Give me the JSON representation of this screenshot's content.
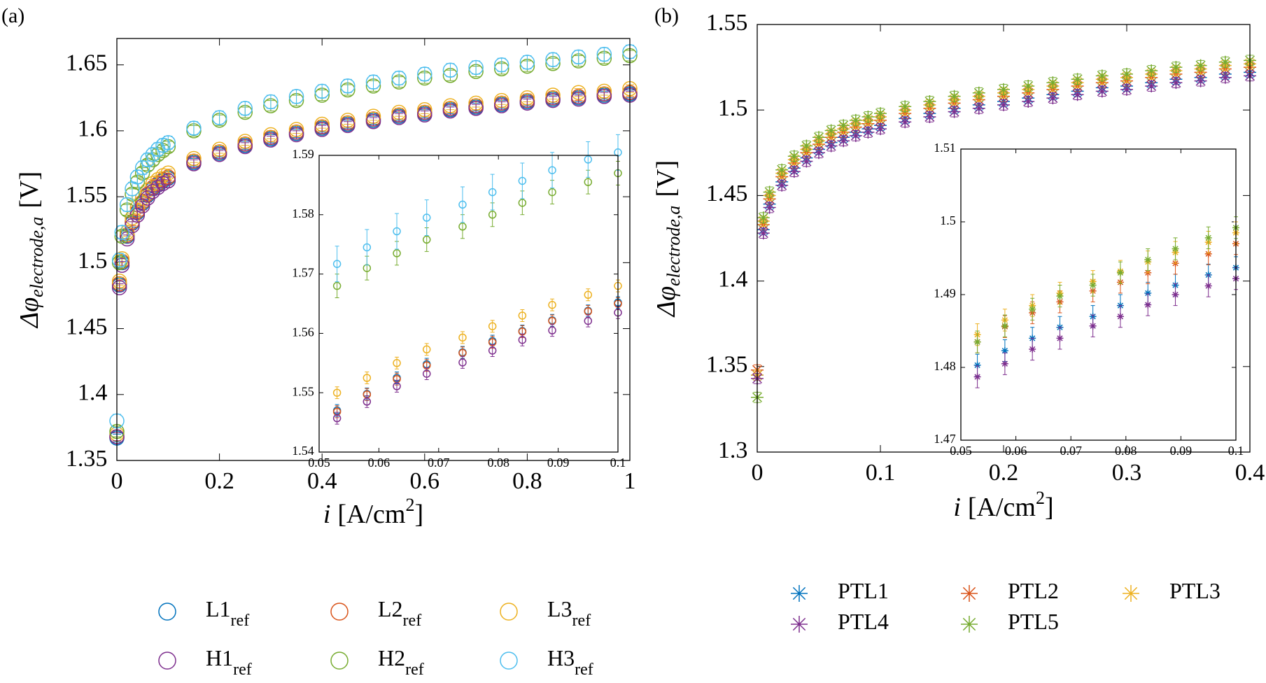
{
  "chart_data": [
    {
      "type": "scatter",
      "panel_label": "(a)",
      "marker": "circle",
      "xlabel": {
        "symbol": "i",
        "unit": "[A/cm",
        "superscript": "2",
        "suffix": "]"
      },
      "ylabel": {
        "symbol": "Δφ",
        "subscript": "electrode,a",
        "unit": "[V]"
      },
      "xlim": [
        0,
        1
      ],
      "ylim": [
        1.35,
        1.67
      ],
      "xticks": [
        0,
        0.2,
        0.4,
        0.6,
        0.8,
        1
      ],
      "yticks": [
        1.35,
        1.4,
        1.45,
        1.5,
        1.55,
        1.6,
        1.65
      ],
      "legend": "bottom",
      "x": [
        0,
        0.005,
        0.01,
        0.02,
        0.03,
        0.04,
        0.05,
        0.06,
        0.07,
        0.08,
        0.09,
        0.1,
        0.15,
        0.2,
        0.25,
        0.3,
        0.35,
        0.4,
        0.45,
        0.5,
        0.55,
        0.6,
        0.65,
        0.7,
        0.75,
        0.8,
        0.85,
        0.9,
        0.95,
        1
      ],
      "series": [
        {
          "name": "L1",
          "subscript": "ref",
          "color": "#0072bd",
          "error": 0.003,
          "values": [
            1.367,
            1.483,
            1.5,
            1.52,
            1.53,
            1.538,
            1.545,
            1.551,
            1.556,
            1.559,
            1.562,
            1.564,
            1.576,
            1.583,
            1.589,
            1.594,
            1.598,
            1.602,
            1.605,
            1.608,
            1.611,
            1.613,
            1.616,
            1.618,
            1.62,
            1.622,
            1.624,
            1.625,
            1.627,
            1.628
          ]
        },
        {
          "name": "L2",
          "subscript": "ref",
          "color": "#d95319",
          "error": 0.003,
          "values": [
            1.368,
            1.484,
            1.501,
            1.521,
            1.531,
            1.539,
            1.546,
            1.552,
            1.557,
            1.56,
            1.563,
            1.565,
            1.577,
            1.584,
            1.59,
            1.595,
            1.599,
            1.603,
            1.606,
            1.609,
            1.612,
            1.614,
            1.617,
            1.619,
            1.621,
            1.623,
            1.625,
            1.626,
            1.628,
            1.629
          ]
        },
        {
          "name": "L3",
          "subscript": "ref",
          "color": "#edb120",
          "error": 0.003,
          "values": [
            1.37,
            1.486,
            1.503,
            1.523,
            1.534,
            1.542,
            1.549,
            1.555,
            1.56,
            1.563,
            1.566,
            1.568,
            1.579,
            1.586,
            1.592,
            1.597,
            1.601,
            1.605,
            1.608,
            1.611,
            1.614,
            1.616,
            1.619,
            1.621,
            1.623,
            1.625,
            1.627,
            1.629,
            1.63,
            1.632
          ]
        },
        {
          "name": "H1",
          "subscript": "ref",
          "color": "#7e2f8e",
          "error": 0.003,
          "values": [
            1.368,
            1.481,
            1.498,
            1.518,
            1.528,
            1.536,
            1.543,
            1.549,
            1.554,
            1.557,
            1.56,
            1.562,
            1.575,
            1.582,
            1.588,
            1.593,
            1.597,
            1.601,
            1.604,
            1.607,
            1.61,
            1.612,
            1.615,
            1.617,
            1.619,
            1.621,
            1.623,
            1.624,
            1.626,
            1.627
          ]
        },
        {
          "name": "H2",
          "subscript": "ref",
          "color": "#77ac30",
          "error": 0.004,
          "values": [
            1.372,
            1.5,
            1.52,
            1.54,
            1.552,
            1.561,
            1.568,
            1.574,
            1.578,
            1.582,
            1.585,
            1.588,
            1.6,
            1.608,
            1.614,
            1.619,
            1.623,
            1.627,
            1.631,
            1.634,
            1.637,
            1.64,
            1.642,
            1.645,
            1.647,
            1.649,
            1.651,
            1.653,
            1.655,
            1.657
          ]
        },
        {
          "name": "H3",
          "subscript": "ref",
          "color": "#4dbeee",
          "error": 0.005,
          "values": [
            1.38,
            1.502,
            1.523,
            1.544,
            1.556,
            1.565,
            1.572,
            1.578,
            1.582,
            1.586,
            1.589,
            1.591,
            1.602,
            1.61,
            1.617,
            1.622,
            1.626,
            1.63,
            1.634,
            1.637,
            1.64,
            1.643,
            1.646,
            1.648,
            1.65,
            1.652,
            1.654,
            1.656,
            1.658,
            1.66
          ]
        }
      ]
    },
    {
      "type": "scatter",
      "marker": "circle",
      "xlim": [
        0.05,
        0.1
      ],
      "ylim": [
        1.54,
        1.59
      ],
      "xticks": [
        0.05,
        0.06,
        0.07,
        0.08,
        0.09,
        0.1
      ],
      "yticks": [
        1.54,
        1.55,
        1.56,
        1.57,
        1.58,
        1.59
      ],
      "x": [
        0.053,
        0.058,
        0.063,
        0.068,
        0.074,
        0.079,
        0.084,
        0.089,
        0.095,
        0.1
      ],
      "series": [
        {
          "color": "#0072bd",
          "error": 0.001,
          "values": [
            1.547,
            1.5498,
            1.5525,
            1.5548,
            1.5568,
            1.5587,
            1.5604,
            1.5622,
            1.5638,
            1.5652
          ]
        },
        {
          "color": "#d95319",
          "error": 0.001,
          "values": [
            1.5468,
            1.5497,
            1.5523,
            1.5546,
            1.5567,
            1.5585,
            1.5603,
            1.5621,
            1.5637,
            1.565
          ]
        },
        {
          "color": "#edb120",
          "error": 0.001,
          "values": [
            1.55,
            1.5525,
            1.555,
            1.5573,
            1.5593,
            1.5612,
            1.563,
            1.5648,
            1.5665,
            1.568
          ]
        },
        {
          "color": "#7e2f8e",
          "error": 0.001,
          "values": [
            1.5457,
            1.5485,
            1.5511,
            1.5532,
            1.5551,
            1.5571,
            1.5589,
            1.5605,
            1.5621,
            1.5635
          ]
        },
        {
          "color": "#77ac30",
          "error": 0.002,
          "values": [
            1.568,
            1.571,
            1.5735,
            1.5758,
            1.578,
            1.58,
            1.582,
            1.5838,
            1.5855,
            1.587
          ]
        },
        {
          "color": "#4dbeee",
          "error": 0.003,
          "values": [
            1.5717,
            1.5745,
            1.5772,
            1.5795,
            1.5817,
            1.5838,
            1.5857,
            1.5875,
            1.5893,
            1.5905
          ]
        }
      ]
    },
    {
      "type": "scatter",
      "panel_label": "(b)",
      "marker": "asterisk",
      "xlabel": {
        "symbol": "i",
        "unit": "[A/cm",
        "superscript": "2",
        "suffix": "]"
      },
      "ylabel": {
        "symbol": "Δφ",
        "subscript": "electrode,a",
        "unit": "[V]"
      },
      "xlim": [
        0,
        0.4
      ],
      "ylim": [
        1.3,
        1.55
      ],
      "xticks": [
        0,
        0.1,
        0.2,
        0.3,
        0.4
      ],
      "yticks": [
        1.3,
        1.35,
        1.4,
        1.45,
        1.5,
        1.55
      ],
      "legend": "bottom",
      "x": [
        0,
        0.005,
        0.01,
        0.02,
        0.03,
        0.04,
        0.05,
        0.06,
        0.07,
        0.08,
        0.09,
        0.1,
        0.12,
        0.14,
        0.16,
        0.18,
        0.2,
        0.22,
        0.24,
        0.26,
        0.28,
        0.3,
        0.32,
        0.34,
        0.36,
        0.38,
        0.4
      ],
      "series": [
        {
          "name": "PTL1",
          "color": "#0072bd",
          "error": 0.003,
          "values": [
            1.345,
            1.43,
            1.445,
            1.458,
            1.466,
            1.472,
            1.477,
            1.481,
            1.484,
            1.487,
            1.489,
            1.491,
            1.495,
            1.498,
            1.501,
            1.503,
            1.505,
            1.507,
            1.509,
            1.511,
            1.513,
            1.514,
            1.516,
            1.518,
            1.519,
            1.521,
            1.522
          ]
        },
        {
          "name": "PTL2",
          "color": "#d95319",
          "error": 0.003,
          "values": [
            1.348,
            1.433,
            1.448,
            1.461,
            1.469,
            1.475,
            1.48,
            1.484,
            1.487,
            1.49,
            1.492,
            1.494,
            1.498,
            1.501,
            1.504,
            1.506,
            1.508,
            1.51,
            1.512,
            1.514,
            1.516,
            1.517,
            1.519,
            1.521,
            1.522,
            1.524,
            1.525
          ]
        },
        {
          "name": "PTL3",
          "color": "#edb120",
          "error": 0.003,
          "values": [
            1.345,
            1.435,
            1.45,
            1.463,
            1.471,
            1.477,
            1.482,
            1.486,
            1.489,
            1.492,
            1.494,
            1.496,
            1.5,
            1.503,
            1.506,
            1.508,
            1.51,
            1.512,
            1.514,
            1.516,
            1.518,
            1.519,
            1.521,
            1.523,
            1.524,
            1.526,
            1.527
          ]
        },
        {
          "name": "PTL4",
          "color": "#7e2f8e",
          "error": 0.003,
          "values": [
            1.343,
            1.428,
            1.443,
            1.456,
            1.464,
            1.47,
            1.475,
            1.479,
            1.482,
            1.485,
            1.487,
            1.489,
            1.493,
            1.496,
            1.499,
            1.501,
            1.503,
            1.505,
            1.507,
            1.509,
            1.511,
            1.512,
            1.514,
            1.516,
            1.517,
            1.519,
            1.52
          ]
        },
        {
          "name": "PTL5",
          "color": "#77ac30",
          "error": 0.003,
          "values": [
            1.332,
            1.437,
            1.452,
            1.465,
            1.473,
            1.479,
            1.484,
            1.488,
            1.491,
            1.494,
            1.496,
            1.498,
            1.502,
            1.505,
            1.508,
            1.51,
            1.512,
            1.514,
            1.516,
            1.518,
            1.52,
            1.521,
            1.523,
            1.525,
            1.526,
            1.528,
            1.529
          ]
        }
      ]
    },
    {
      "type": "scatter",
      "marker": "asterisk",
      "xlim": [
        0.05,
        0.1
      ],
      "ylim": [
        1.47,
        1.51
      ],
      "xticks": [
        0.05,
        0.06,
        0.07,
        0.08,
        0.09,
        0.1
      ],
      "yticks": [
        1.47,
        1.48,
        1.49,
        1.5,
        1.51
      ],
      "x": [
        0.053,
        0.058,
        0.063,
        0.068,
        0.074,
        0.079,
        0.084,
        0.089,
        0.095,
        0.1
      ],
      "series": [
        {
          "color": "#0072bd",
          "error": 0.0015,
          "values": [
            1.4803,
            1.4823,
            1.484,
            1.4855,
            1.487,
            1.4885,
            1.4902,
            1.4913,
            1.4927,
            1.4937
          ]
        },
        {
          "color": "#d95319",
          "error": 0.0015,
          "values": [
            1.4835,
            1.4856,
            1.4875,
            1.489,
            1.4905,
            1.4917,
            1.493,
            1.4943,
            1.4956,
            1.497
          ]
        },
        {
          "color": "#edb120",
          "error": 0.0015,
          "values": [
            1.4845,
            1.4865,
            1.4885,
            1.4902,
            1.4918,
            1.4932,
            1.4945,
            1.4958,
            1.4972,
            1.4985
          ]
        },
        {
          "color": "#7e2f8e",
          "error": 0.0015,
          "values": [
            1.4787,
            1.4805,
            1.4825,
            1.484,
            1.4857,
            1.487,
            1.4886,
            1.49,
            1.4912,
            1.4922
          ]
        },
        {
          "color": "#77ac30",
          "error": 0.0015,
          "values": [
            1.4835,
            1.4857,
            1.488,
            1.4898,
            1.4913,
            1.493,
            1.4948,
            1.4963,
            1.4978,
            1.4992
          ]
        }
      ]
    }
  ]
}
